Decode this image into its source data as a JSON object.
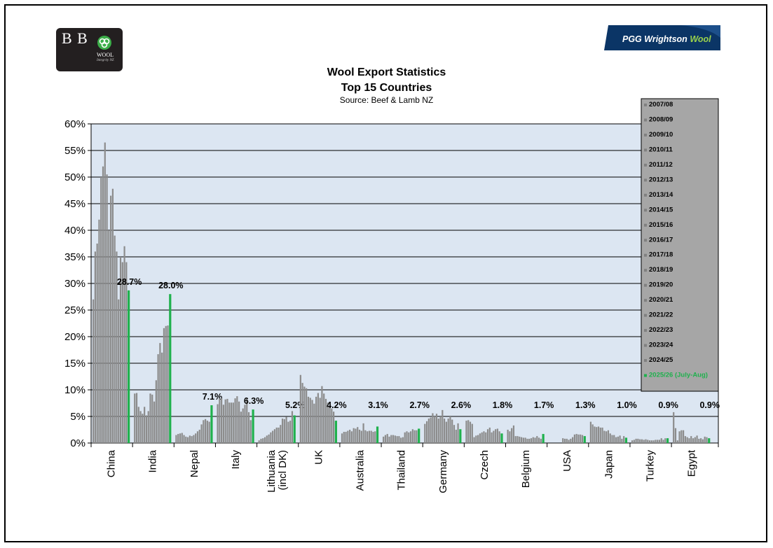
{
  "logos": {
    "left_mark": "B B",
    "left_brand": "WOOL",
    "left_sub": "Integrity NZ",
    "right_brand_main": "PGG Wrightson",
    "right_brand_accent": "Wool"
  },
  "chart_data": {
    "type": "bar",
    "title": "Wool Export Statistics",
    "subtitle": "Top 15 Countries",
    "source": "Source: Beef & Lamb NZ",
    "ylim": [
      0,
      60
    ],
    "yticks": [
      "0%",
      "5%",
      "10%",
      "15%",
      "20%",
      "25%",
      "30%",
      "35%",
      "40%",
      "45%",
      "50%",
      "55%",
      "60%"
    ],
    "grid": true,
    "legend_position": "right",
    "colors": {
      "history": "#8c8c8c",
      "current": "#1fb14d",
      "plot_bg": "#dce6f2",
      "legend_bg": "#a6a6a6"
    },
    "series": [
      {
        "name": "2007/08"
      },
      {
        "name": "2008/09"
      },
      {
        "name": "2009/10"
      },
      {
        "name": "2010/11"
      },
      {
        "name": "2011/12"
      },
      {
        "name": "2012/13"
      },
      {
        "name": "2013/14"
      },
      {
        "name": "2014/15"
      },
      {
        "name": "2015/16"
      },
      {
        "name": "2016/17"
      },
      {
        "name": "2017/18"
      },
      {
        "name": "2018/19"
      },
      {
        "name": "2019/20"
      },
      {
        "name": "2020/21"
      },
      {
        "name": "2021/22"
      },
      {
        "name": "2022/23"
      },
      {
        "name": "2023/24"
      },
      {
        "name": "2024/25"
      },
      {
        "name": "2025/26 (July-Aug)"
      }
    ],
    "categories": [
      {
        "label": "China",
        "values": [
          27,
          36,
          37.5,
          42,
          50,
          52,
          56.5,
          50.5,
          40,
          46.5,
          47.8,
          39,
          36,
          27,
          35,
          34,
          37,
          34,
          28.7
        ],
        "current_label": "28.7%"
      },
      {
        "label": "India",
        "values": [
          9.3,
          9.4,
          6.8,
          6,
          5.5,
          6.8,
          5.2,
          6,
          9.3,
          9.1,
          7.8,
          11.8,
          16.7,
          18.8,
          17,
          21.6,
          22,
          22.1,
          28.0
        ],
        "current_label": "28.0%"
      },
      {
        "label": "Nepal",
        "values": [
          1.5,
          1.7,
          1.8,
          1.9,
          1.5,
          1.2,
          1.1,
          1.4,
          1.3,
          1.5,
          1.8,
          2.2,
          2.5,
          3.5,
          4.3,
          4.5,
          4.2,
          4.0,
          7.1
        ],
        "current_label": "7.1%"
      },
      {
        "label": "Italy",
        "values": [
          7.3,
          8.4,
          8.4,
          7.2,
          8.2,
          8.3,
          7.6,
          7.6,
          7.6,
          8.4,
          8.8,
          7.8,
          5.9,
          6.5,
          7.2,
          8.4,
          5.8,
          4.3,
          6.3
        ],
        "current_label": "6.3%"
      },
      {
        "label": "Lithuania (incl DK)",
        "values": [
          0.5,
          0.8,
          0.9,
          1.1,
          1.4,
          1.6,
          2.0,
          2.3,
          2.6,
          2.9,
          2.9,
          3.4,
          4.6,
          4.5,
          4.9,
          4.0,
          4.2,
          6.0,
          5.2
        ],
        "current_label": "5.2%"
      },
      {
        "label": "UK",
        "values": [
          12.8,
          11.3,
          10.6,
          10.3,
          8.7,
          8.5,
          8.1,
          7.4,
          8.7,
          9.4,
          8.5,
          10.7,
          9.3,
          8.3,
          7.6,
          6.9,
          6.5,
          5.9,
          4.2
        ],
        "current_label": "4.2%"
      },
      {
        "label": "Australia",
        "values": [
          1.8,
          2.1,
          2.1,
          2.3,
          2.5,
          2.2,
          2.8,
          2.7,
          3.0,
          2.5,
          2.3,
          3.7,
          2.4,
          2.2,
          2.3,
          2.3,
          2.1,
          2.2,
          3.1
        ],
        "current_label": "3.1%"
      },
      {
        "label": "Thailand",
        "values": [
          1.2,
          1.5,
          1.7,
          1.2,
          1.5,
          1.5,
          1.4,
          1.3,
          1.3,
          1.0,
          1.1,
          2.0,
          2.2,
          2.0,
          2.2,
          2.6,
          2.4,
          2.4,
          2.7
        ],
        "current_label": "2.7%"
      },
      {
        "label": "Germany",
        "values": [
          3.6,
          4.1,
          4.6,
          4.8,
          5.6,
          5.0,
          5.5,
          4.6,
          5.0,
          6.2,
          4.6,
          4.0,
          4.6,
          5.0,
          4.4,
          3.4,
          2.5,
          3.7,
          2.6
        ],
        "current_label": "2.6%"
      },
      {
        "label": "Czech",
        "values": [
          4.2,
          4.3,
          4.0,
          3.6,
          1.1,
          1.4,
          1.5,
          1.8,
          2.0,
          2.2,
          2.0,
          2.6,
          2.9,
          2.0,
          2.3,
          2.6,
          2.7,
          2.2,
          1.8
        ],
        "current_label": "1.8%"
      },
      {
        "label": "Belgium",
        "values": [
          2.5,
          2.2,
          2.8,
          3.3,
          1.3,
          1.3,
          1.2,
          1.1,
          1.0,
          1.0,
          0.8,
          0.8,
          0.9,
          1.1,
          1.0,
          1.3,
          1.0,
          0.8,
          1.7
        ],
        "current_label": "1.7%"
      },
      {
        "label": "USA",
        "values": [
          0,
          0,
          0,
          0,
          0,
          0,
          0,
          0.9,
          0.8,
          0.8,
          0.6,
          0.8,
          1.1,
          1.6,
          1.7,
          1.6,
          1.6,
          1.5,
          1.3
        ],
        "current_label": "1.3%"
      },
      {
        "label": "Japan",
        "values": [
          4.0,
          3.5,
          3.1,
          3.0,
          3.1,
          2.9,
          2.9,
          2.3,
          2.2,
          2.4,
          1.8,
          1.5,
          1.5,
          1.1,
          1.2,
          1.4,
          0.8,
          1.3,
          1.0
        ],
        "current_label": "1.0%"
      },
      {
        "label": "Turkey",
        "values": [
          0.5,
          0.6,
          0.8,
          0.8,
          0.7,
          0.7,
          0.6,
          0.7,
          0.6,
          0.5,
          0.5,
          0.5,
          0.6,
          0.6,
          0.6,
          0.9,
          0.6,
          0.9,
          0.9
        ],
        "current_label": "0.9%"
      },
      {
        "label": "Egypt",
        "values": [
          5.8,
          2.8,
          0.5,
          2.2,
          2.4,
          2.4,
          1.3,
          1.1,
          0.9,
          1.3,
          0.9,
          1.1,
          1.4,
          0.8,
          0.9,
          0.7,
          1.2,
          1.1,
          0.9
        ],
        "current_label": "0.9%"
      }
    ]
  }
}
